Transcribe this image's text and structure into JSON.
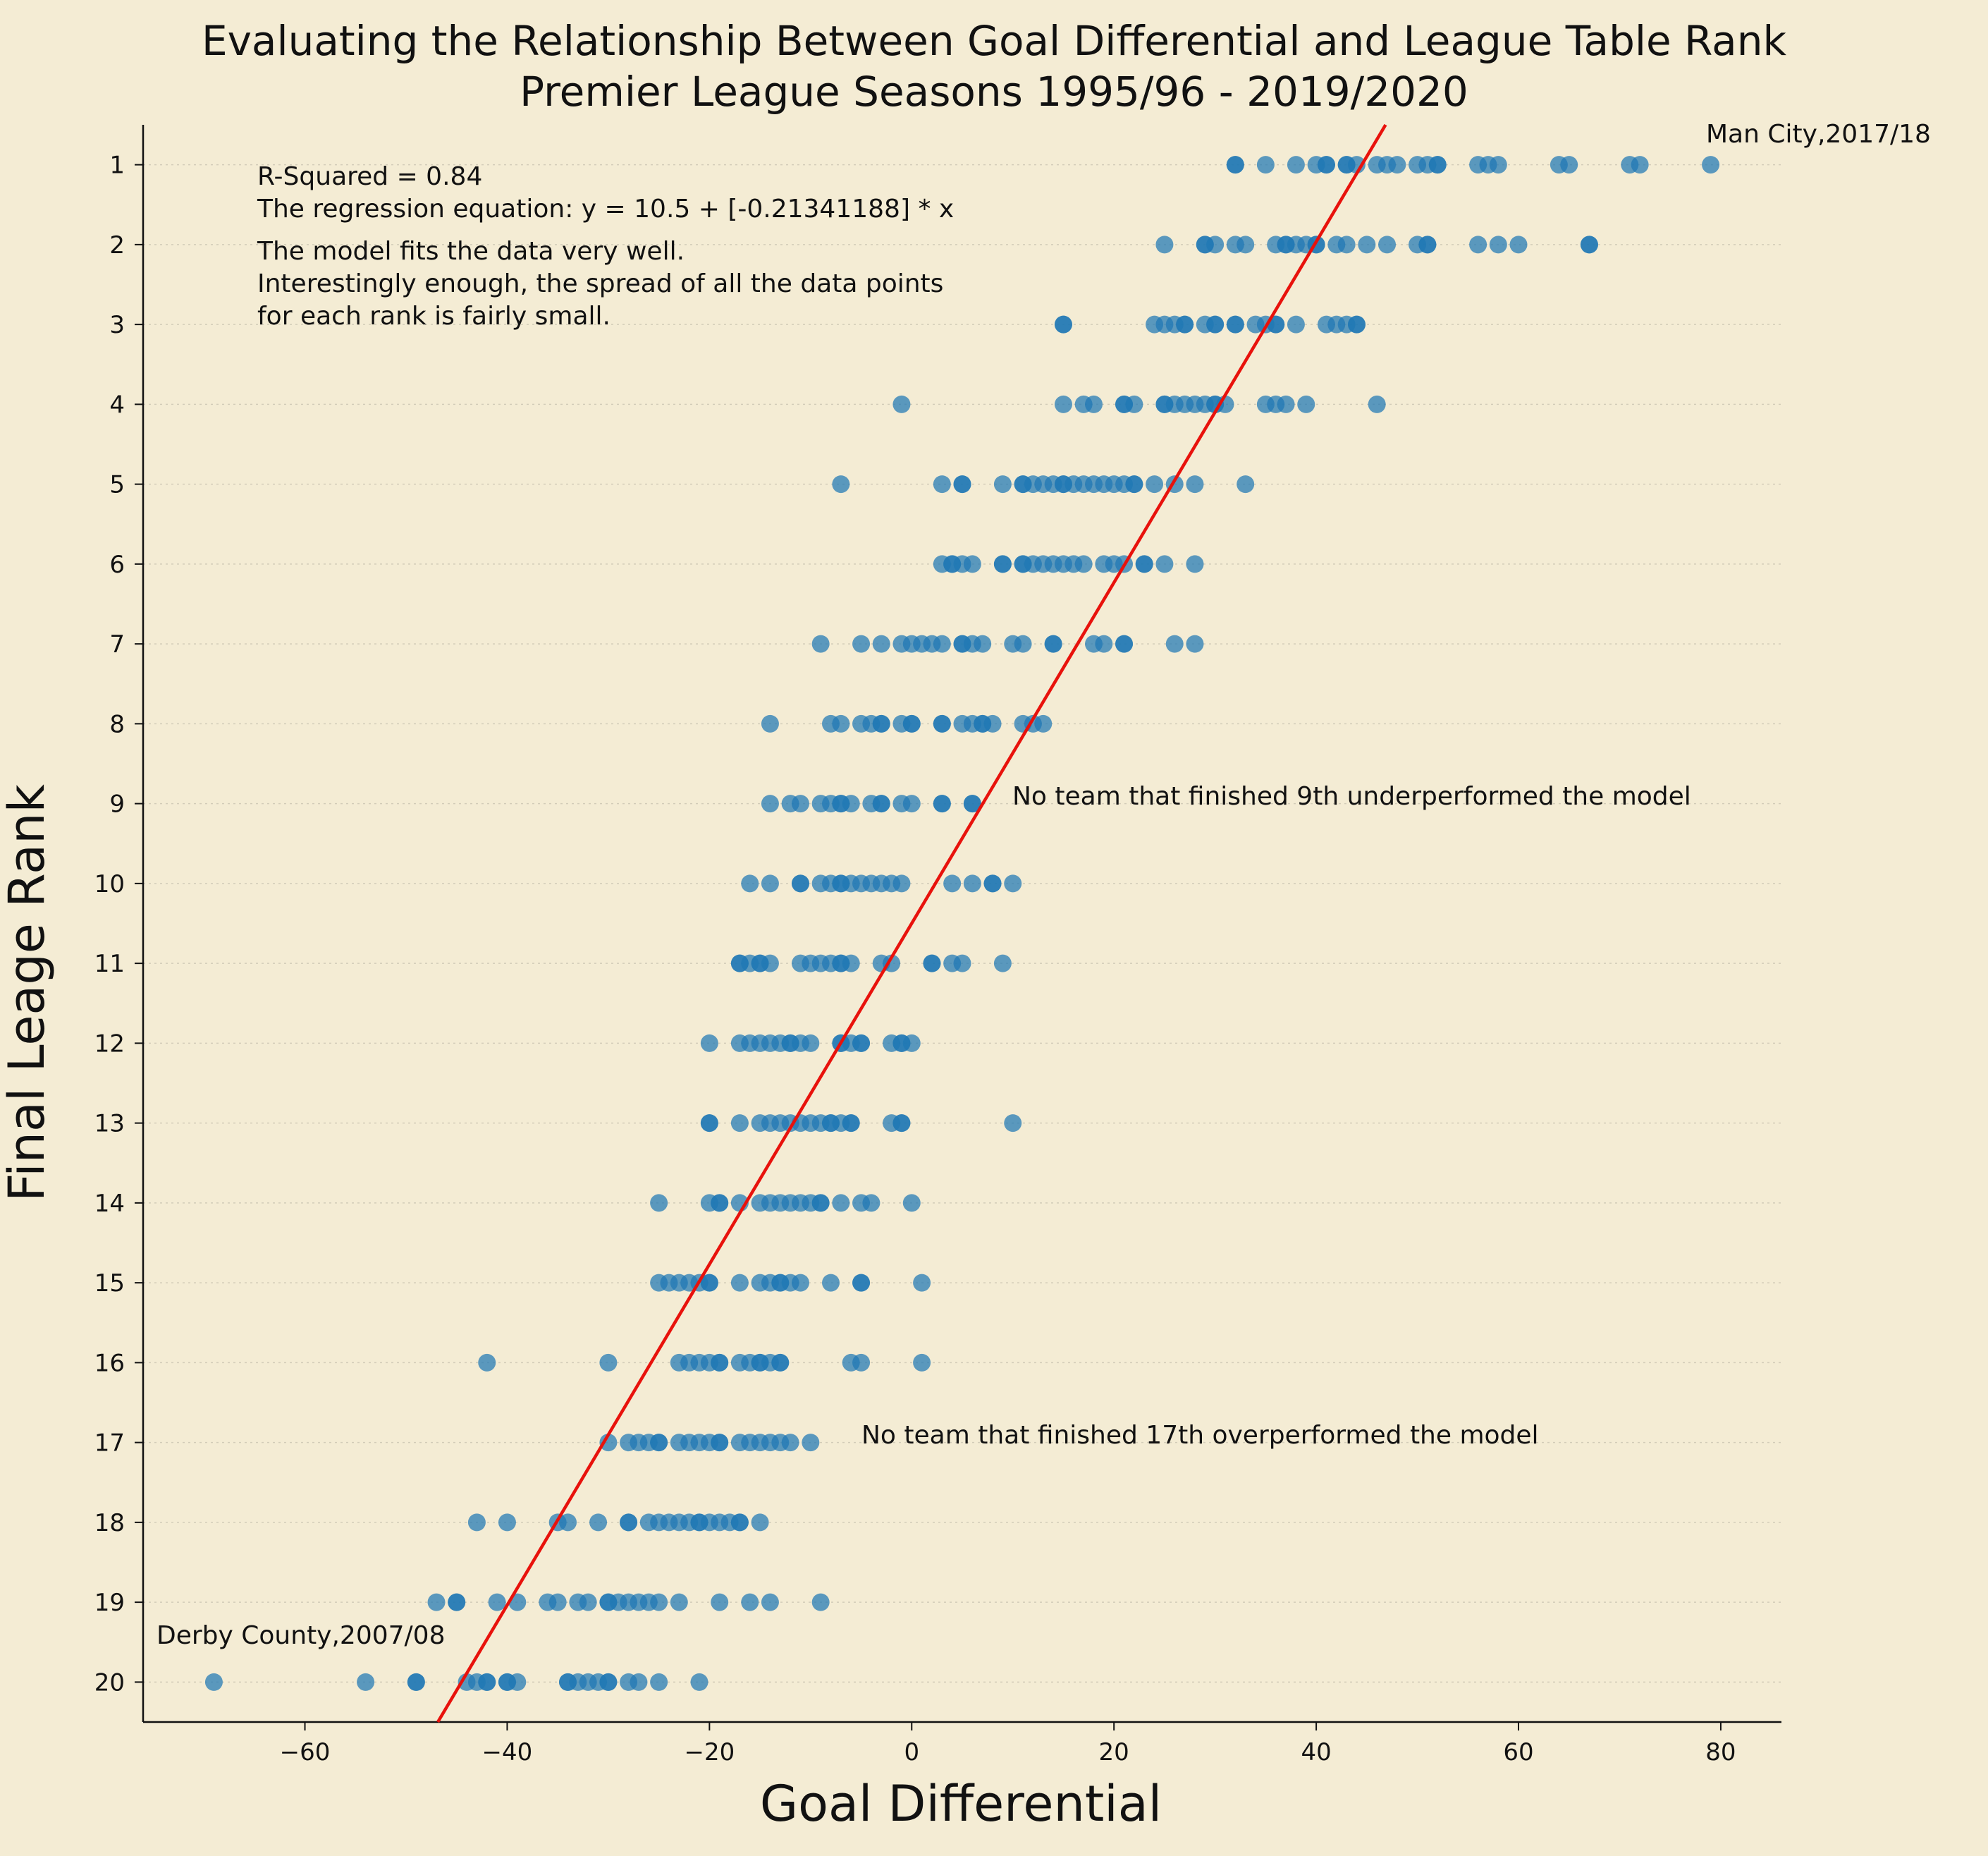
{
  "title": {
    "line1": "Evaluating the Relationship Between Goal Differential and League Table Rank",
    "line2": "Premier League Seasons 1995/96 - 2019/2020"
  },
  "chart_data": {
    "type": "scatter",
    "xlabel": "Goal Differential",
    "ylabel": "Final Leage Rank",
    "xlim": [
      -76,
      86
    ],
    "ylim": [
      20.5,
      0.5
    ],
    "x_ticks": [
      -60,
      -40,
      -20,
      0,
      20,
      40,
      60,
      80
    ],
    "y_ticks": [
      1,
      2,
      3,
      4,
      5,
      6,
      7,
      8,
      9,
      10,
      11,
      12,
      13,
      14,
      15,
      16,
      17,
      18,
      19,
      20
    ],
    "grid": "horizontal dotted",
    "point_color": "#1f77b4",
    "regression": {
      "intercept": 10.5,
      "slope": -0.21341188,
      "color": "#e8120c"
    },
    "annotations": {
      "r_squared": "R-Squared = 0.84",
      "equation": "The regression equation: y = 10.5 + [-0.21341188] * x",
      "fit_note_1": "The model fits the data very well.",
      "fit_note_2": "Interestingly enough, the spread of all the data points",
      "fit_note_3": "for each rank is fairly small.",
      "ninth": "No team that finished 9th underperformed the model",
      "seventeenth": "No team that finished 17th overperformed the model",
      "top": "Man City,2017/18",
      "bottom": "Derby County,2007/08"
    },
    "ranks": [
      {
        "rank": 1,
        "gd": [
          32,
          32,
          35,
          38,
          40,
          41,
          41,
          43,
          43,
          44,
          46,
          47,
          48,
          50,
          51,
          52,
          52,
          56,
          57,
          58,
          64,
          65,
          71,
          72,
          79
        ]
      },
      {
        "rank": 2,
        "gd": [
          25,
          29,
          29,
          30,
          32,
          33,
          36,
          37,
          37,
          38,
          39,
          40,
          40,
          42,
          43,
          45,
          47,
          50,
          51,
          51,
          56,
          58,
          60,
          67,
          67
        ]
      },
      {
        "rank": 3,
        "gd": [
          15,
          15,
          24,
          25,
          26,
          27,
          27,
          29,
          30,
          30,
          32,
          32,
          34,
          35,
          36,
          36,
          38,
          41,
          42,
          43,
          44,
          44
        ]
      },
      {
        "rank": 4,
        "gd": [
          -1,
          15,
          17,
          18,
          21,
          21,
          22,
          25,
          25,
          26,
          27,
          28,
          29,
          30,
          30,
          31,
          35,
          36,
          37,
          39,
          46
        ]
      },
      {
        "rank": 5,
        "gd": [
          -7,
          3,
          5,
          5,
          9,
          11,
          11,
          12,
          13,
          14,
          15,
          15,
          16,
          17,
          18,
          19,
          20,
          21,
          22,
          22,
          24,
          26,
          28,
          33
        ]
      },
      {
        "rank": 6,
        "gd": [
          3,
          4,
          4,
          5,
          6,
          9,
          9,
          11,
          11,
          12,
          13,
          14,
          15,
          16,
          17,
          19,
          20,
          21,
          23,
          23,
          25,
          28
        ]
      },
      {
        "rank": 7,
        "gd": [
          -9,
          -5,
          -3,
          -1,
          0,
          1,
          2,
          3,
          5,
          5,
          6,
          7,
          10,
          11,
          14,
          14,
          18,
          19,
          21,
          21,
          26,
          28
        ]
      },
      {
        "rank": 8,
        "gd": [
          -14,
          -8,
          -7,
          -5,
          -4,
          -3,
          -3,
          -1,
          0,
          0,
          3,
          3,
          5,
          6,
          7,
          7,
          8,
          11,
          12,
          13
        ]
      },
      {
        "rank": 9,
        "gd": [
          -14,
          -12,
          -11,
          -9,
          -8,
          -7,
          -7,
          -6,
          -4,
          -3,
          -3,
          -1,
          0,
          3,
          3,
          6,
          6
        ]
      },
      {
        "rank": 10,
        "gd": [
          -16,
          -14,
          -11,
          -11,
          -9,
          -8,
          -7,
          -7,
          -6,
          -5,
          -4,
          -3,
          -2,
          -1,
          4,
          6,
          8,
          8,
          10
        ]
      },
      {
        "rank": 11,
        "gd": [
          -17,
          -17,
          -16,
          -15,
          -15,
          -14,
          -11,
          -10,
          -9,
          -8,
          -7,
          -7,
          -6,
          -3,
          -2,
          2,
          2,
          4,
          5,
          9
        ]
      },
      {
        "rank": 12,
        "gd": [
          -20,
          -17,
          -16,
          -15,
          -14,
          -13,
          -12,
          -12,
          -11,
          -10,
          -7,
          -7,
          -6,
          -5,
          -5,
          -2,
          -1,
          -1,
          0
        ]
      },
      {
        "rank": 13,
        "gd": [
          -20,
          -20,
          -17,
          -15,
          -14,
          -13,
          -12,
          -11,
          -10,
          -9,
          -8,
          -8,
          -7,
          -6,
          -6,
          -2,
          -1,
          -1,
          10
        ]
      },
      {
        "rank": 14,
        "gd": [
          -25,
          -20,
          -19,
          -19,
          -17,
          -15,
          -14,
          -13,
          -12,
          -11,
          -10,
          -9,
          -9,
          -7,
          -5,
          -4,
          0
        ]
      },
      {
        "rank": 15,
        "gd": [
          -25,
          -24,
          -23,
          -22,
          -21,
          -20,
          -20,
          -17,
          -15,
          -14,
          -13,
          -13,
          -12,
          -11,
          -8,
          -5,
          -5,
          1
        ]
      },
      {
        "rank": 16,
        "gd": [
          -42,
          -30,
          -23,
          -22,
          -21,
          -20,
          -19,
          -19,
          -17,
          -16,
          -15,
          -15,
          -14,
          -13,
          -13,
          -6,
          -5,
          1
        ]
      },
      {
        "rank": 17,
        "gd": [
          -30,
          -28,
          -27,
          -26,
          -25,
          -25,
          -23,
          -22,
          -21,
          -20,
          -19,
          -19,
          -17,
          -16,
          -15,
          -14,
          -13,
          -12,
          -10
        ]
      },
      {
        "rank": 18,
        "gd": [
          -43,
          -40,
          -35,
          -34,
          -31,
          -28,
          -28,
          -26,
          -25,
          -24,
          -23,
          -22,
          -21,
          -21,
          -20,
          -19,
          -18,
          -17,
          -17,
          -15
        ]
      },
      {
        "rank": 19,
        "gd": [
          -47,
          -45,
          -45,
          -41,
          -39,
          -36,
          -35,
          -33,
          -32,
          -30,
          -30,
          -29,
          -28,
          -27,
          -26,
          -25,
          -23,
          -19,
          -16,
          -14,
          -9
        ]
      },
      {
        "rank": 20,
        "gd": [
          -69,
          -54,
          -49,
          -49,
          -44,
          -43,
          -42,
          -42,
          -40,
          -40,
          -39,
          -34,
          -34,
          -33,
          -32,
          -31,
          -30,
          -30,
          -28,
          -27,
          -25,
          -21
        ]
      }
    ]
  }
}
